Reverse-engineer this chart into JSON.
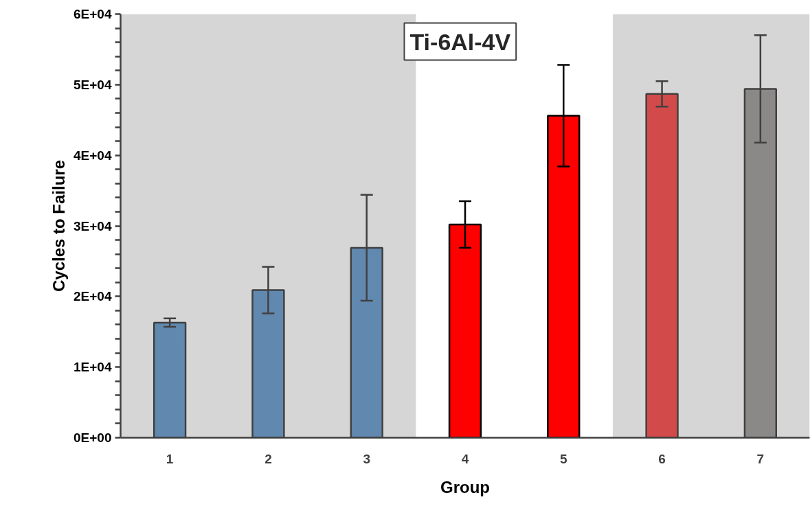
{
  "chart_data": {
    "type": "bar",
    "title": "Ti-6Al-4V",
    "xlabel": "Group",
    "ylabel": "Cycles to Failure",
    "categories": [
      "1",
      "2",
      "3",
      "4",
      "5",
      "6",
      "7"
    ],
    "values": [
      16300,
      20900,
      26900,
      30200,
      45600,
      48700,
      49400
    ],
    "errors": [
      600,
      3300,
      7500,
      3300,
      7200,
      1800,
      7600
    ],
    "colors": [
      "#6189b0",
      "#6189b0",
      "#6189b0",
      "#ff0000",
      "#ff0000",
      "#d24a4a",
      "#8a8987"
    ],
    "ylim": [
      0,
      60000
    ],
    "yticks": [
      {
        "value": 0,
        "label": "0E+00"
      },
      {
        "value": 2000,
        "label": null
      },
      {
        "value": 4000,
        "label": null
      },
      {
        "value": 6000,
        "label": null
      },
      {
        "value": 8000,
        "label": null
      },
      {
        "value": 10000,
        "label": "1E+04"
      },
      {
        "value": 12000,
        "label": null
      },
      {
        "value": 14000,
        "label": null
      },
      {
        "value": 16000,
        "label": null
      },
      {
        "value": 18000,
        "label": null
      },
      {
        "value": 20000,
        "label": "2E+04"
      },
      {
        "value": 22000,
        "label": null
      },
      {
        "value": 24000,
        "label": null
      },
      {
        "value": 26000,
        "label": null
      },
      {
        "value": 28000,
        "label": null
      },
      {
        "value": 30000,
        "label": "3E+04"
      },
      {
        "value": 32000,
        "label": null
      },
      {
        "value": 34000,
        "label": null
      },
      {
        "value": 36000,
        "label": null
      },
      {
        "value": 38000,
        "label": null
      },
      {
        "value": 40000,
        "label": "4E+04"
      },
      {
        "value": 42000,
        "label": null
      },
      {
        "value": 44000,
        "label": null
      },
      {
        "value": 46000,
        "label": null
      },
      {
        "value": 48000,
        "label": null
      },
      {
        "value": 50000,
        "label": "5E+04"
      },
      {
        "value": 52000,
        "label": null
      },
      {
        "value": 54000,
        "label": null
      },
      {
        "value": 56000,
        "label": null
      },
      {
        "value": 58000,
        "label": null
      },
      {
        "value": 60000,
        "label": "6E+04"
      }
    ],
    "bands": [
      {
        "axis": "x",
        "from": "1",
        "to": "3",
        "color": "#d6d6d6"
      },
      {
        "axis": "x",
        "from": "6",
        "to": "7",
        "color": "#d6d6d6"
      }
    ],
    "grid": false
  }
}
